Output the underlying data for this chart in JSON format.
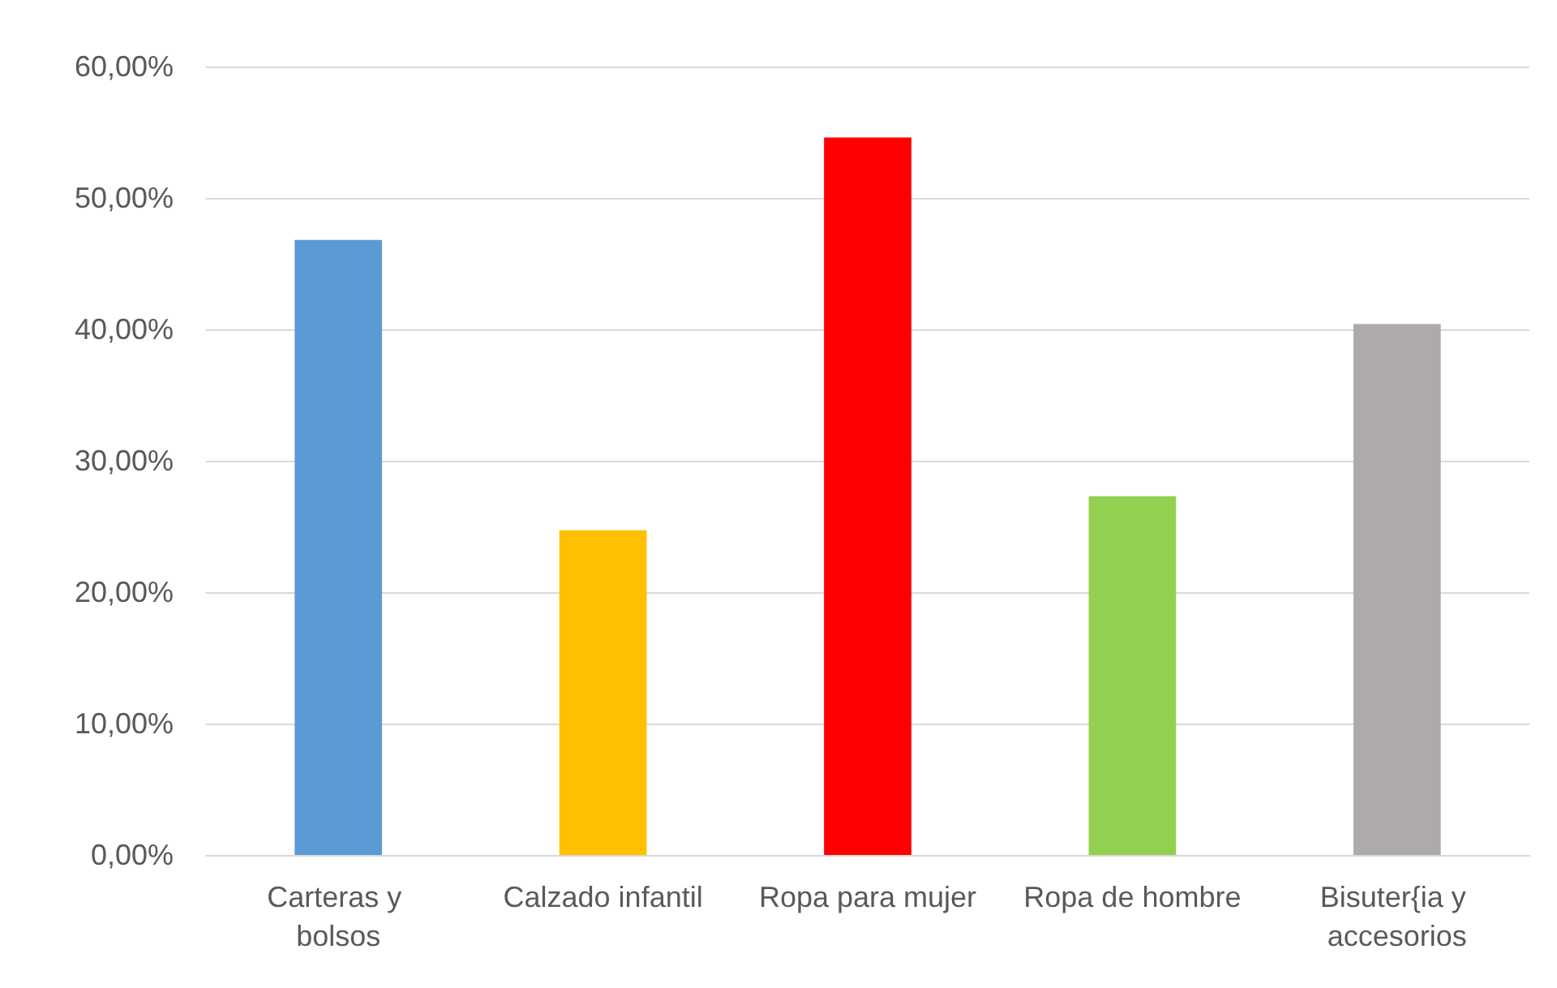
{
  "chart_data": {
    "type": "bar",
    "categories": [
      "Carteras y bolsos",
      "Calzado infantil",
      "Ropa para mujer",
      "Ropa de hombre",
      "Bisuter{ia y accesorios"
    ],
    "values": [
      46.8,
      24.7,
      54.6,
      27.3,
      40.4
    ],
    "colors": [
      "#5b9bd5",
      "#ffc000",
      "#ff0000",
      "#92d050",
      "#aeaaaa"
    ],
    "ylim": [
      0,
      60
    ],
    "yticks": [
      {
        "value": 0,
        "label": "0,00%"
      },
      {
        "value": 10,
        "label": "10,00%"
      },
      {
        "value": 20,
        "label": "20,00%"
      },
      {
        "value": 30,
        "label": "30,00%"
      },
      {
        "value": 40,
        "label": "40,00%"
      },
      {
        "value": 50,
        "label": "50,00%"
      },
      {
        "value": 60,
        "label": "60,00%"
      }
    ],
    "grid": "y"
  }
}
